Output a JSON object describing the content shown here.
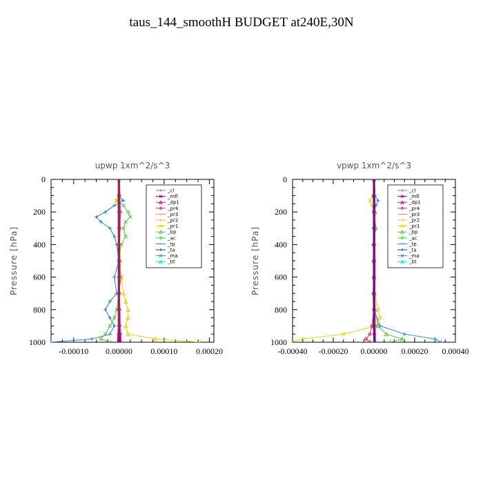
{
  "title": "taus_144_smoothH  BUDGET at240E,30N",
  "legend_labels": [
    "_cl",
    "_mfl",
    "_dp1",
    "_pr4",
    "_pr3",
    "_pr2",
    "_pr1",
    "_bp",
    "_ac",
    "_tp",
    "_ta",
    "_ma",
    "_bt"
  ],
  "series_colors": {
    "_cl": "#9966cc",
    "_mfl": "#800080",
    "_dp1": "#b0185a",
    "_pr4": "#e0306a",
    "_pr3": "#ff7f50",
    "_pr2": "#ffb347",
    "_pr1": "#e8d000",
    "_bp": "#55c040",
    "_ac": "#3cd83c",
    "_tp": "#2080c0",
    "_ta": "#203a9a",
    "_ma": "#20a8a8",
    "_bt": "#00e0e0"
  },
  "chart_data": [
    {
      "type": "line",
      "title": "upwp   1xm^2/s^3",
      "ylabel": "Pressure [hPa]",
      "xlim": [
        -0.00015,
        0.00021
      ],
      "ylim": [
        1000,
        0
      ],
      "xticks": [
        -0.0001,
        0.0,
        0.0001,
        0.0002
      ],
      "xtick_labels": [
        "-0.00010",
        "0.00000",
        "0.00010",
        "0.00020"
      ],
      "yticks": [
        0,
        200,
        400,
        600,
        800,
        1000
      ],
      "ytick_labels": [
        "0",
        "200",
        "400",
        "600",
        "800",
        "1000"
      ],
      "legend": "top-right inside",
      "series": [
        {
          "name": "_tp",
          "pressure": [
            0,
            100,
            130,
            160,
            200,
            230,
            260,
            300,
            350,
            400,
            500,
            600,
            700,
            750,
            800,
            850,
            900,
            950,
            980,
            1000
          ],
          "values": [
            0,
            0.0,
            1e-05,
            -1e-05,
            -3e-05,
            -5e-05,
            -4e-05,
            -2e-05,
            -1e-05,
            -5e-06,
            0.0,
            -1e-05,
            -5e-06,
            -2e-05,
            -3e-05,
            -2e-05,
            -1e-05,
            -2e-05,
            -6e-05,
            -0.00015
          ]
        },
        {
          "name": "_bp",
          "pressure": [
            0,
            100,
            130,
            160,
            200,
            230,
            260,
            300,
            350,
            400,
            500,
            600,
            700,
            800,
            850,
            900,
            950,
            980,
            1000
          ],
          "values": [
            0,
            0.0,
            -5e-06,
            1e-05,
            2e-05,
            2.5e-05,
            1.5e-05,
            1e-05,
            1.5e-05,
            5e-06,
            0.0,
            5e-06,
            0.0,
            -5e-06,
            -1e-05,
            -2e-05,
            -3e-05,
            -4e-05,
            -2e-05
          ]
        },
        {
          "name": "_pr1",
          "pressure": [
            0,
            100,
            130,
            160,
            200,
            300,
            400,
            500,
            600,
            700,
            750,
            800,
            850,
            900,
            950,
            980,
            1000
          ],
          "values": [
            0,
            0.0,
            -5e-06,
            0.0,
            5e-06,
            3e-06,
            2e-06,
            3e-06,
            5e-06,
            1e-05,
            1.5e-05,
            2e-05,
            2e-05,
            1.5e-05,
            2e-05,
            8e-05,
            0.00018
          ]
        },
        {
          "name": "_cl",
          "pressure": [
            0,
            100,
            200,
            300,
            400,
            500,
            600,
            700,
            800,
            900,
            950,
            1000
          ],
          "values": [
            0,
            1e-06,
            2e-06,
            1e-06,
            0.0,
            1e-06,
            1e-06,
            0.0,
            1e-06,
            2e-06,
            3e-06,
            4e-06
          ]
        },
        {
          "name": "_mfl",
          "pressure": [
            0,
            100,
            200,
            300,
            400,
            500,
            600,
            700,
            800,
            900,
            950,
            1000
          ],
          "values": [
            0,
            0.0,
            0.0,
            0.0,
            0.0,
            0.0,
            0.0,
            0.0,
            0.0,
            0.0,
            1e-06,
            2e-06
          ]
        },
        {
          "name": "_dp1",
          "pressure": [
            0,
            100,
            200,
            300,
            400,
            500,
            600,
            700,
            800,
            900,
            950,
            1000
          ],
          "values": [
            0,
            0.0,
            0.0,
            0.0,
            0.0,
            0.0,
            0.0,
            0.0,
            0.0,
            0.0,
            -1e-06,
            -2e-06
          ]
        }
      ]
    },
    {
      "type": "line",
      "title": "vpwp   1xm^2/s^3",
      "ylabel": "Pressure [hPa]",
      "xlim": [
        -0.0004,
        0.0004
      ],
      "ylim": [
        1000,
        0
      ],
      "xticks": [
        -0.0004,
        -0.0002,
        0.0,
        0.0002,
        0.0004
      ],
      "xtick_labels": [
        "-0.00040",
        "-0.00020",
        "0.00000",
        "0.00020",
        "0.00040"
      ],
      "yticks": [
        0,
        200,
        400,
        600,
        800,
        1000
      ],
      "ytick_labels": [
        "0",
        "200",
        "400",
        "600",
        "800",
        "1000"
      ],
      "legend": "top-right inside",
      "series": [
        {
          "name": "_tp",
          "pressure": [
            0,
            100,
            130,
            160,
            200,
            300,
            400,
            500,
            600,
            700,
            800,
            900,
            950,
            980,
            1000
          ],
          "values": [
            0,
            5e-06,
            2e-05,
            1e-05,
            0.0,
            1e-05,
            -5e-06,
            0.0,
            0.0,
            -5e-06,
            0.0,
            3e-05,
            0.00015,
            0.0003,
            0.00033
          ]
        },
        {
          "name": "_pr1",
          "pressure": [
            0,
            100,
            130,
            160,
            200,
            300,
            400,
            500,
            600,
            700,
            800,
            850,
            900,
            950,
            980,
            1000
          ],
          "values": [
            0,
            -5e-06,
            -2e-05,
            -1e-05,
            0.0,
            5e-06,
            0.0,
            0.0,
            0.0,
            5e-06,
            2e-05,
            3e-05,
            1e-05,
            -0.00015,
            -0.00035,
            -0.00042
          ]
        },
        {
          "name": "_bp",
          "pressure": [
            0,
            100,
            200,
            300,
            400,
            500,
            600,
            700,
            800,
            900,
            950,
            980,
            1000
          ],
          "values": [
            0,
            0.0,
            5e-06,
            5e-06,
            0.0,
            0.0,
            0.0,
            0.0,
            5e-06,
            2e-05,
            6e-05,
            0.00014,
            8e-05
          ]
        },
        {
          "name": "_pr4",
          "pressure": [
            0,
            100,
            200,
            300,
            400,
            500,
            600,
            700,
            800,
            900,
            950,
            980,
            1000
          ],
          "values": [
            0,
            0.0,
            0.0,
            0.0,
            0.0,
            0.0,
            0.0,
            0.0,
            0.0,
            -1e-05,
            -2e-05,
            -4e-05,
            -2e-05
          ]
        },
        {
          "name": "_cl",
          "pressure": [
            0,
            100,
            200,
            300,
            400,
            500,
            600,
            700,
            800,
            900,
            950,
            1000
          ],
          "values": [
            0,
            2e-06,
            3e-06,
            2e-06,
            2e-06,
            3e-06,
            3e-06,
            2e-06,
            3e-06,
            4e-06,
            4e-06,
            5e-06
          ]
        },
        {
          "name": "_mfl",
          "pressure": [
            0,
            100,
            200,
            300,
            400,
            500,
            600,
            700,
            800,
            900,
            950,
            1000
          ],
          "values": [
            0,
            0.0,
            0.0,
            0.0,
            0.0,
            0.0,
            0.0,
            0.0,
            0.0,
            0.0,
            1e-06,
            2e-06
          ]
        }
      ]
    }
  ]
}
